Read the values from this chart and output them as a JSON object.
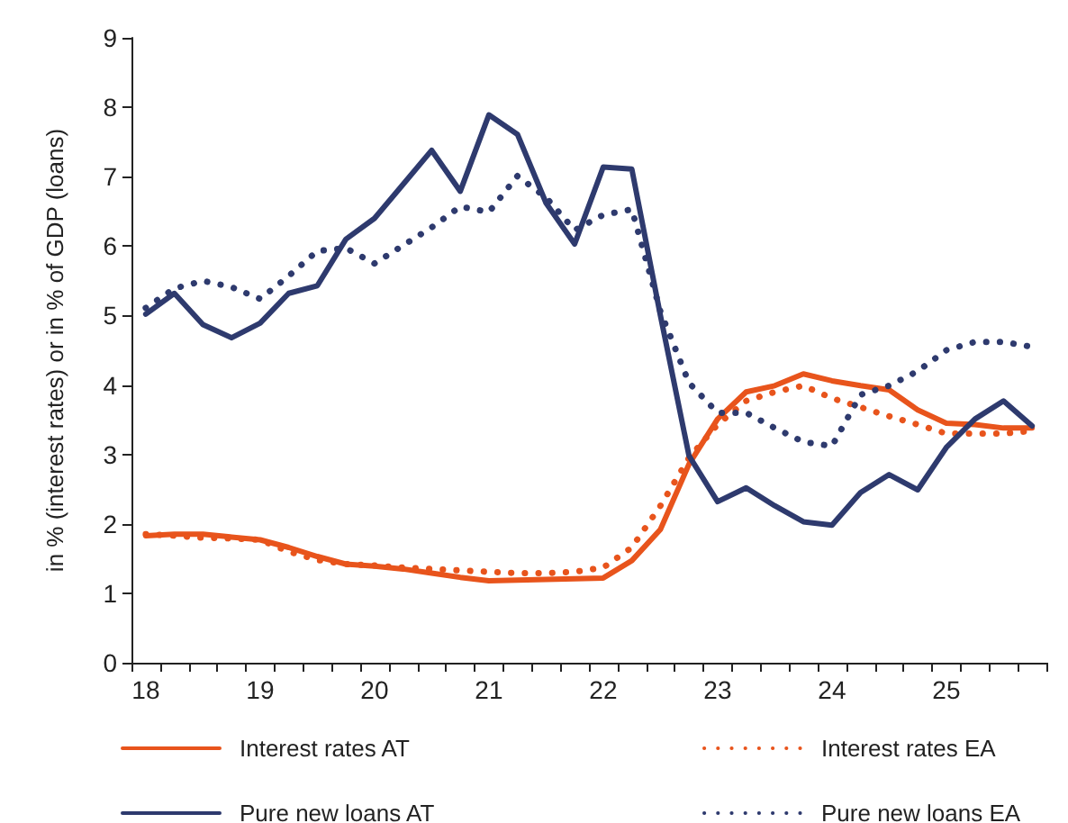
{
  "chart_data": {
    "type": "line",
    "ylabel": "in % (interest rates) or in % of GDP (loans)",
    "categories": [
      "18",
      null,
      null,
      null,
      "19",
      null,
      null,
      null,
      "20",
      null,
      null,
      null,
      "21",
      null,
      null,
      null,
      "22",
      null,
      null,
      null,
      "23",
      null,
      null,
      null,
      "24",
      null,
      null,
      null,
      "25",
      null,
      null,
      null
    ],
    "ylim": [
      0,
      9
    ],
    "yticks": [
      0,
      1,
      2,
      3,
      4,
      5,
      6,
      7,
      8,
      9
    ],
    "grid": false,
    "legend": "bottom",
    "marker": "none",
    "series": [
      {
        "name": "Interest rates AT",
        "color": "#e8541c",
        "line_style": "solid",
        "values": [
          1.83,
          1.85,
          1.85,
          1.81,
          1.77,
          1.66,
          1.53,
          1.42,
          1.39,
          1.35,
          1.29,
          1.23,
          1.18,
          1.19,
          1.2,
          1.21,
          1.22,
          1.47,
          1.92,
          2.86,
          3.51,
          3.9,
          3.99,
          4.16,
          4.06,
          3.99,
          3.93,
          3.64,
          3.45,
          3.43,
          3.38,
          3.38
        ]
      },
      {
        "name": "Interest rates EA",
        "color": "#e8541c",
        "line_style": "dotted",
        "values": [
          1.85,
          1.83,
          1.8,
          1.79,
          1.77,
          1.6,
          1.48,
          1.42,
          1.4,
          1.37,
          1.35,
          1.33,
          1.31,
          1.29,
          1.29,
          1.31,
          1.37,
          1.66,
          2.26,
          2.95,
          3.43,
          3.77,
          3.9,
          3.99,
          3.81,
          3.68,
          3.55,
          3.43,
          3.3,
          3.3,
          3.3,
          3.34
        ]
      },
      {
        "name": "Pure new loans AT",
        "color": "#2e3a6e",
        "line_style": "solid",
        "values": [
          5.02,
          5.32,
          4.87,
          4.68,
          4.89,
          5.32,
          5.43,
          6.1,
          6.4,
          6.89,
          7.38,
          6.79,
          7.89,
          7.61,
          6.62,
          6.03,
          7.14,
          7.11,
          5.0,
          2.98,
          2.32,
          2.52,
          2.26,
          2.03,
          1.98,
          2.45,
          2.71,
          2.49,
          3.1,
          3.51,
          3.77,
          3.41
        ]
      },
      {
        "name": "Pure new loans EA",
        "color": "#2e3a6e",
        "line_style": "dotted",
        "values": [
          5.11,
          5.39,
          5.5,
          5.41,
          5.24,
          5.57,
          5.93,
          5.97,
          5.75,
          6.01,
          6.27,
          6.57,
          6.49,
          7.01,
          6.7,
          6.23,
          6.45,
          6.53,
          5.06,
          4.03,
          3.6,
          3.6,
          3.38,
          3.18,
          3.12,
          3.86,
          3.99,
          4.2,
          4.5,
          4.62,
          4.62,
          4.55
        ]
      }
    ]
  }
}
